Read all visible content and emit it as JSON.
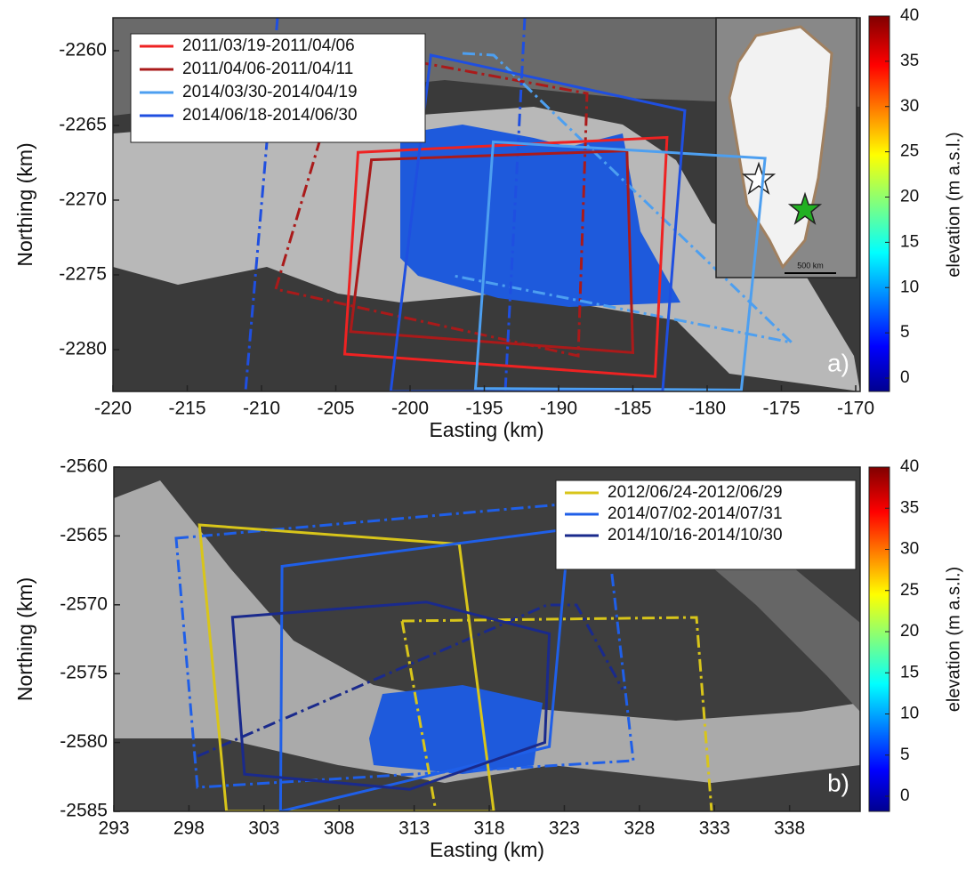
{
  "chart_data": [
    {
      "type": "map",
      "xlabel": "Easting (km)",
      "ylabel": "Northing (km)",
      "xlim": [
        -220,
        -169.7
      ],
      "ylim": [
        -2282.8,
        -2257.8
      ],
      "xticks": [
        -220,
        -215,
        -210,
        -205,
        -200,
        -195,
        -190,
        -185,
        -180,
        -175,
        -170
      ],
      "yticks": [
        -2260,
        -2265,
        -2270,
        -2275,
        -2280
      ],
      "legend": "upper left",
      "series": [
        {
          "name": "2011/03/19-2011/04/06",
          "color": "#ee2222",
          "x": [
            -203.5,
            -182.7,
            -183.5,
            -204.4
          ],
          "y": [
            -2266.8,
            -2265.8,
            -2281.8,
            -2280.3
          ]
        },
        {
          "name": "2011/04/06-2011/04/11",
          "color": "#aa1a1a",
          "x": [
            -202.6,
            -185.4,
            -185.0,
            -204.0
          ],
          "y": [
            -2267.3,
            -2266.7,
            -2280.2,
            -2278.8
          ]
        },
        {
          "name": "2014/03/30-2014/04/19",
          "color": "#4d9ff0",
          "x": [
            -194.4,
            -176.1,
            -177.7,
            -195.6
          ],
          "y": [
            -2266.1,
            -2267.2,
            -2282.7,
            -2282.6
          ]
        },
        {
          "name": "2014/06/18-2014/06/30",
          "color": "#1f4fe0",
          "x": [
            -198.6,
            -181.5,
            -183.0,
            -201.3
          ],
          "y": [
            -2260.3,
            -2264.0,
            -2282.8,
            -2282.8
          ]
        }
      ],
      "colorbar": {
        "label": "elevation (m a.s.l.)",
        "lim": [
          0,
          40
        ],
        "ticks": [
          0,
          5,
          10,
          15,
          20,
          25,
          30,
          35,
          40
        ]
      },
      "panel_label": "a)",
      "inset_scale_label": "500 km"
    },
    {
      "type": "map",
      "xlabel": "Easting (km)",
      "ylabel": "Northing (km)",
      "xlim": [
        293,
        342.7
      ],
      "ylim": [
        -2585,
        -2560
      ],
      "xticks": [
        293,
        298,
        303,
        308,
        313,
        318,
        323,
        328,
        333,
        338
      ],
      "yticks": [
        -2560,
        -2565,
        -2570,
        -2575,
        -2580,
        -2585
      ],
      "legend": "upper right",
      "series": [
        {
          "name": "2012/06/24-2012/06/29",
          "color": "#d8c51a",
          "x": [
            298.7,
            316.0,
            318.3,
            300.5
          ],
          "y": [
            -2564.2,
            -2565.6,
            -2585,
            -2585
          ]
        },
        {
          "name": "2014/07/02-2014/07/31",
          "color": "#1f5fe8",
          "x": [
            304.2,
            323.3,
            322.0,
            304.1
          ],
          "y": [
            -2567.2,
            -2564.5,
            -2580.3,
            -2585
          ]
        },
        {
          "name": "2014/10/16-2014/10/30",
          "color": "#1a2a8c",
          "x": [
            300.9,
            313.8,
            322.0,
            321.7,
            312.7,
            301.7
          ],
          "y": [
            -2570.9,
            -2569.8,
            -2572.1,
            -2580.0,
            -2583.4,
            -2582.3
          ]
        }
      ],
      "colorbar": {
        "label": "elevation (m a.s.l.)",
        "lim": [
          0,
          40
        ],
        "ticks": [
          0,
          5,
          10,
          15,
          20,
          25,
          30,
          35,
          40
        ]
      },
      "panel_label": "b)"
    }
  ]
}
